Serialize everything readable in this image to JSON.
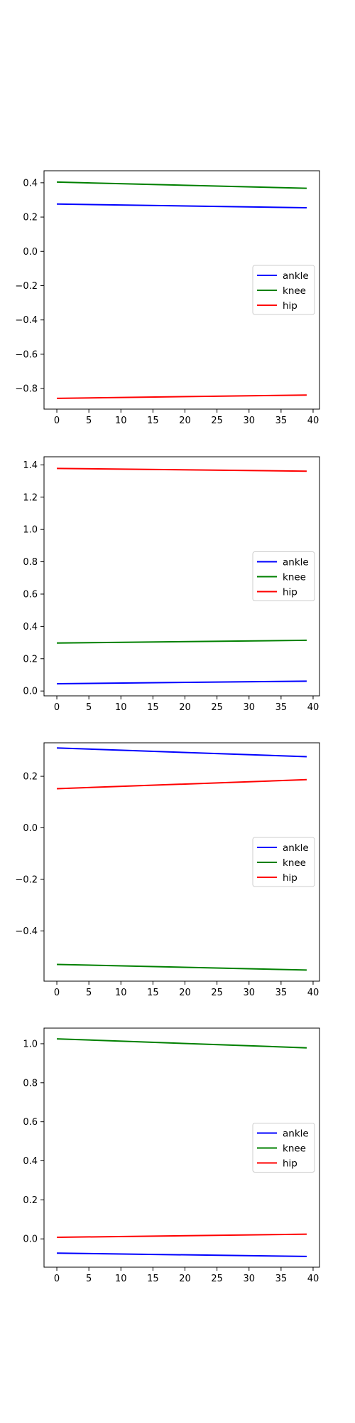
{
  "chart_data": [
    {
      "type": "line",
      "title": "",
      "xlabel": "",
      "ylabel": "",
      "xlim": [
        -2,
        41
      ],
      "ylim": [
        -0.92,
        0.47
      ],
      "xticks": [
        0,
        5,
        10,
        15,
        20,
        25,
        30,
        35,
        40
      ],
      "yticks": [
        -0.8,
        -0.6,
        -0.4,
        -0.2,
        0.0,
        0.2,
        0.4
      ],
      "ytick_labels": [
        "−0.8",
        "−0.6",
        "−0.4",
        "−0.2",
        "0.0",
        "0.2",
        "0.4"
      ],
      "legend": "center-right",
      "grid": false,
      "series": [
        {
          "name": "ankle",
          "color": "#0000ff",
          "x": [
            0,
            39
          ],
          "values": [
            0.276,
            0.254
          ]
        },
        {
          "name": "knee",
          "color": "#008000",
          "x": [
            0,
            39
          ],
          "values": [
            0.404,
            0.368
          ]
        },
        {
          "name": "hip",
          "color": "#ff0000",
          "x": [
            0,
            39
          ],
          "values": [
            -0.857,
            -0.838
          ]
        }
      ]
    },
    {
      "type": "line",
      "title": "",
      "xlabel": "",
      "ylabel": "",
      "xlim": [
        -2,
        41
      ],
      "ylim": [
        -0.03,
        1.45
      ],
      "xticks": [
        0,
        5,
        10,
        15,
        20,
        25,
        30,
        35,
        40
      ],
      "yticks": [
        0.0,
        0.2,
        0.4,
        0.6,
        0.8,
        1.0,
        1.2,
        1.4
      ],
      "ytick_labels": [
        "0.0",
        "0.2",
        "0.4",
        "0.6",
        "0.8",
        "1.0",
        "1.2",
        "1.4"
      ],
      "legend": "center-right",
      "grid": false,
      "series": [
        {
          "name": "ankle",
          "color": "#0000ff",
          "x": [
            0,
            39
          ],
          "values": [
            0.045,
            0.061
          ]
        },
        {
          "name": "knee",
          "color": "#008000",
          "x": [
            0,
            39
          ],
          "values": [
            0.297,
            0.314
          ]
        },
        {
          "name": "hip",
          "color": "#ff0000",
          "x": [
            0,
            39
          ],
          "values": [
            1.378,
            1.361
          ]
        }
      ]
    },
    {
      "type": "line",
      "title": "",
      "xlabel": "",
      "ylabel": "",
      "xlim": [
        -2,
        41
      ],
      "ylim": [
        -0.595,
        0.33
      ],
      "xticks": [
        0,
        5,
        10,
        15,
        20,
        25,
        30,
        35,
        40
      ],
      "yticks": [
        -0.4,
        -0.2,
        0.0,
        0.2
      ],
      "ytick_labels": [
        "−0.4",
        "−0.2",
        "0.0",
        "0.2"
      ],
      "legend": "center-right",
      "grid": false,
      "series": [
        {
          "name": "ankle",
          "color": "#0000ff",
          "x": [
            0,
            39
          ],
          "values": [
            0.31,
            0.276
          ]
        },
        {
          "name": "knee",
          "color": "#008000",
          "x": [
            0,
            39
          ],
          "values": [
            -0.53,
            -0.552
          ]
        },
        {
          "name": "hip",
          "color": "#ff0000",
          "x": [
            0,
            39
          ],
          "values": [
            0.152,
            0.187
          ]
        }
      ]
    },
    {
      "type": "line",
      "title": "",
      "xlabel": "",
      "ylabel": "",
      "xlim": [
        -2,
        41
      ],
      "ylim": [
        -0.145,
        1.08
      ],
      "xticks": [
        0,
        5,
        10,
        15,
        20,
        25,
        30,
        35,
        40
      ],
      "yticks": [
        0.0,
        0.2,
        0.4,
        0.6,
        0.8,
        1.0
      ],
      "ytick_labels": [
        "0.0",
        "0.2",
        "0.4",
        "0.6",
        "0.8",
        "1.0"
      ],
      "legend": "center-right",
      "grid": false,
      "series": [
        {
          "name": "ankle",
          "color": "#0000ff",
          "x": [
            0,
            39
          ],
          "values": [
            -0.073,
            -0.09
          ]
        },
        {
          "name": "knee",
          "color": "#008000",
          "x": [
            0,
            39
          ],
          "values": [
            1.025,
            0.979
          ]
        },
        {
          "name": "hip",
          "color": "#ff0000",
          "x": [
            0,
            39
          ],
          "values": [
            0.008,
            0.024
          ]
        }
      ]
    }
  ]
}
